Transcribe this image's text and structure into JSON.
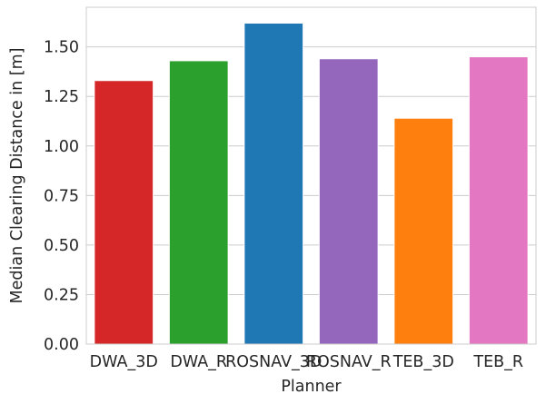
{
  "chart_data": {
    "type": "bar",
    "title": "",
    "xlabel": "Planner",
    "ylabel": "Median Clearing Distance in [m]",
    "categories": [
      "DWA_3D",
      "DWA_R",
      "ROSNAV_3D",
      "ROSNAV_R",
      "TEB_3D",
      "TEB_R"
    ],
    "values": [
      1.33,
      1.43,
      1.62,
      1.44,
      1.14,
      1.45
    ],
    "colors": [
      "#d62728",
      "#2ca02c",
      "#1f77b4",
      "#9467bd",
      "#ff7f0e",
      "#e377c2"
    ],
    "ylim": [
      0,
      1.7
    ],
    "yticks": [
      "0.00",
      "0.25",
      "0.50",
      "0.75",
      "1.00",
      "1.25",
      "1.50"
    ],
    "grid": true,
    "grid_axis": "y"
  }
}
